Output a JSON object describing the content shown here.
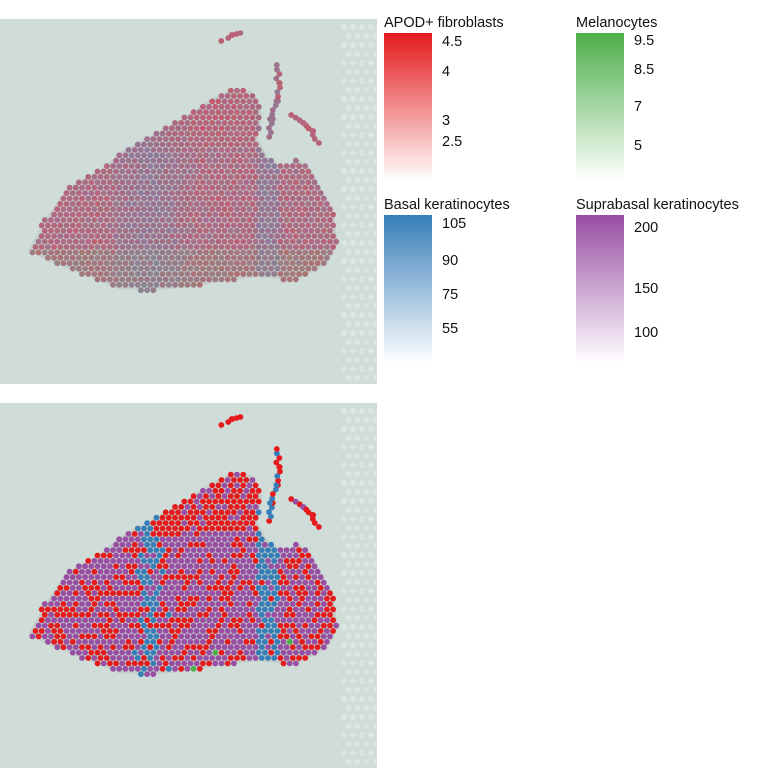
{
  "chart_data": {
    "type": "scatter",
    "description_free": true,
    "panels": [
      {
        "mode": "blend"
      },
      {
        "mode": "dominant"
      }
    ],
    "series": [
      {
        "name": "APOD+ fibroblasts",
        "color": "#e41a1c",
        "ticks": [
          4.5,
          4,
          3,
          2.5
        ],
        "range": [
          2.0,
          4.7
        ]
      },
      {
        "name": "Melanocytes",
        "color": "#4daf4a",
        "ticks": [
          9.5,
          8.5,
          7,
          5
        ],
        "range": [
          3.5,
          9.8
        ]
      },
      {
        "name": "Basal keratinocytes",
        "color": "#377eb8",
        "ticks": [
          105,
          90,
          75,
          55
        ],
        "range": [
          40,
          112
        ]
      },
      {
        "name": "Suprabasal keratinocytes",
        "color": "#984ea3",
        "ticks": [
          200,
          150,
          100
        ],
        "range": [
          70,
          212
        ]
      }
    ]
  },
  "legends": [
    {
      "title": "APOD+ fibroblasts",
      "color": "#e41a1c",
      "ticks": [
        "4.5",
        "4",
        "3",
        "2.5"
      ]
    },
    {
      "title": "Melanocytes",
      "color": "#4daf4a",
      "ticks": [
        "9.5",
        "8.5",
        "7",
        "5"
      ]
    },
    {
      "title": "Basal keratinocytes",
      "color": "#377eb8",
      "ticks": [
        "105",
        "90",
        "75",
        "55"
      ]
    },
    {
      "title": "Suprabasal keratinocytes",
      "color": "#984ea3",
      "ticks": [
        "200",
        "150",
        "100"
      ]
    }
  ],
  "colors": {
    "background": "#cfdcd8",
    "tissue": "#b9c3c0"
  }
}
